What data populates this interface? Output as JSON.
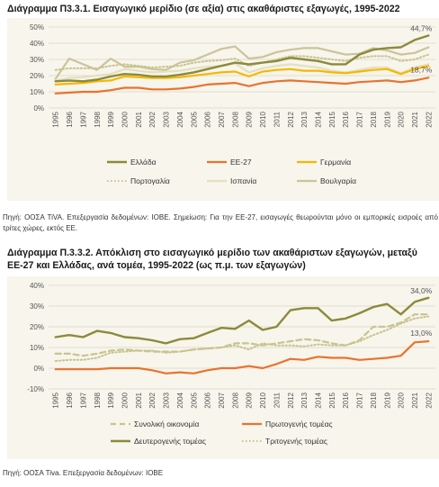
{
  "chart_data": [
    {
      "type": "line",
      "title": "Διάγραμμα Π3.3.1. Εισαγωγικό μερίδιο (σε αξία) στις ακαθάριστες εξαγωγές, 1995-2022",
      "x": [
        "1995",
        "1996",
        "1997",
        "1998",
        "1999",
        "2000",
        "2001",
        "2002",
        "2003",
        "2004",
        "2005",
        "2006",
        "2007",
        "2008",
        "2009",
        "2010",
        "2011",
        "2012",
        "2013",
        "2014",
        "2015",
        "2016",
        "2017",
        "2018",
        "2019",
        "2020",
        "2021",
        "2022"
      ],
      "yticks": [
        "0%",
        "10%",
        "20%",
        "30%",
        "40%",
        "50%"
      ],
      "ylim": [
        0,
        50
      ],
      "grid": true,
      "legend_position": "bottom",
      "series": [
        {
          "name": "Ελλάδα",
          "color": "#8c8a3a",
          "style": "solid",
          "width": 2.4,
          "values": [
            16.5,
            17,
            16.5,
            17.5,
            19.5,
            21,
            20.5,
            19.5,
            19.5,
            20.5,
            22,
            24,
            26,
            28,
            27,
            28,
            29,
            31,
            30,
            29,
            27,
            27,
            33,
            36,
            37,
            37.5,
            42,
            44.7
          ]
        },
        {
          "name": "ΕΕ-27",
          "color": "#e8732e",
          "style": "solid",
          "width": 2.2,
          "values": [
            9,
            9.5,
            10,
            10,
            11,
            12.5,
            12.5,
            11.5,
            11.5,
            12,
            13,
            14.5,
            15,
            15.5,
            13.5,
            15.5,
            16.5,
            17,
            16.5,
            16,
            15.5,
            15,
            16,
            16.5,
            17,
            16,
            17,
            18.7
          ]
        },
        {
          "name": "Γερμανία",
          "color": "#f5b800",
          "style": "solid",
          "width": 2.2,
          "values": [
            14.5,
            15,
            15.5,
            16.5,
            17,
            19.5,
            19,
            18.5,
            18.5,
            19,
            20,
            21,
            22,
            22.5,
            19.5,
            22.5,
            23.5,
            24,
            23,
            23,
            22,
            21.5,
            22.5,
            23.5,
            24,
            21,
            24,
            26
          ]
        },
        {
          "name": "Πορτογαλία",
          "color": "#c8c490",
          "style": "dotted",
          "width": 2,
          "values": [
            23.5,
            24.5,
            24.5,
            24.5,
            26,
            27,
            26,
            25,
            25.5,
            26,
            28,
            29,
            29.5,
            30.5,
            26,
            28,
            30,
            32,
            32,
            31,
            30,
            29,
            31,
            32,
            32,
            29,
            30,
            33
          ]
        },
        {
          "name": "Ισπανία",
          "color": "#e5e0be",
          "style": "solid",
          "width": 2.2,
          "values": [
            17,
            18.5,
            19,
            20,
            21,
            24,
            23,
            22,
            22.5,
            23,
            24.5,
            25.5,
            26,
            27.5,
            22,
            24.5,
            26,
            27,
            26,
            25,
            23,
            22,
            23.5,
            25,
            25,
            21.5,
            25,
            27
          ]
        },
        {
          "name": "Βουλγαρία",
          "color": "#cbc49a",
          "style": "solid",
          "width": 2.2,
          "values": [
            18,
            30.5,
            27,
            23.5,
            30.5,
            25.5,
            25.5,
            24,
            23.5,
            28,
            29.5,
            33,
            36.5,
            38,
            30.5,
            31.5,
            34.5,
            36,
            37,
            37,
            35,
            33,
            33.5,
            37,
            35.5,
            33,
            34,
            37.5
          ]
        }
      ],
      "annotations": [
        {
          "text": "44,7%",
          "series": "Ελλάδα"
        },
        {
          "text": "18,7%",
          "series": "ΕΕ-27"
        }
      ]
    },
    {
      "type": "line",
      "title": "Διάγραμμα Π.3.3.2. Απόκλιση στο εισαγωγικό μερίδιο των ακαθάριστων εξαγωγών, μεταξύ ΕΕ-27 και Ελλάδας, ανά τομέα, 1995-2022 (ως π.μ. των εξαγωγών)",
      "x": [
        "1995",
        "1996",
        "1997",
        "1998",
        "1999",
        "2000",
        "2001",
        "2002",
        "2003",
        "2004",
        "2005",
        "2006",
        "2007",
        "2008",
        "2009",
        "2010",
        "2011",
        "2012",
        "2013",
        "2014",
        "2015",
        "2016",
        "2017",
        "2018",
        "2019",
        "2020",
        "2021",
        "2022"
      ],
      "yticks": [
        "-10%",
        "0%",
        "10%",
        "20%",
        "30%",
        "40%"
      ],
      "ylim": [
        -10,
        40
      ],
      "grid": true,
      "legend_position": "bottom",
      "series": [
        {
          "name": "Συνολική οικονομία",
          "color": "#c8c490",
          "style": "dashed",
          "width": 2.2,
          "values": [
            7,
            7,
            6,
            7,
            8.5,
            9,
            8.5,
            8,
            8,
            8,
            9,
            9.5,
            10,
            12,
            12,
            11,
            12,
            13,
            14,
            13.5,
            12,
            11,
            13.5,
            20,
            20,
            22,
            26,
            26
          ]
        },
        {
          "name": "Πρωτογενής τομέας",
          "color": "#e8732e",
          "style": "solid",
          "width": 2.2,
          "values": [
            -0.5,
            -0.5,
            -0.5,
            -0.5,
            0,
            0,
            0,
            -1,
            -2.5,
            -2,
            -2.5,
            -1,
            0,
            0,
            1,
            0,
            2,
            4.5,
            4,
            5.5,
            5,
            5,
            4,
            4.5,
            5,
            6,
            12.5,
            13
          ]
        },
        {
          "name": "Δευτερογενής τομέας",
          "color": "#8c8a3a",
          "style": "solid",
          "width": 2.4,
          "values": [
            15,
            16,
            15,
            18,
            17,
            15,
            14.5,
            13.5,
            12,
            14,
            14.5,
            17,
            19.5,
            19,
            23,
            18.5,
            20,
            28,
            29,
            29,
            23,
            24,
            26.5,
            29.5,
            31,
            26,
            32,
            34
          ]
        },
        {
          "name": "Τριτογενής τομέας",
          "color": "#c8c490",
          "style": "dotted",
          "width": 2,
          "values": [
            3.5,
            4,
            4,
            5,
            7.5,
            8,
            8.5,
            8.5,
            7.5,
            8,
            9,
            9.5,
            10,
            11,
            9,
            12,
            11,
            11,
            10.5,
            11.5,
            11,
            11,
            13,
            16,
            18.5,
            21.5,
            24,
            25
          ]
        }
      ],
      "annotations": [
        {
          "text": "34,0%",
          "series": "Δευτερογενής τομέας"
        },
        {
          "text": "13,0%",
          "series": "Πρωτογενής τομέας"
        }
      ]
    }
  ],
  "source1": "Πηγή: ΟΟΣΑ TiVA.   Επεξεργασία δεδομένων: ΙΟΒΕ. Σημείωση: Για την ΕΕ-27, εισαγωγές θεωρούνται μόνο οι εμπορικές εισροές από τρίτες χώρες, εκτός ΕΕ.",
  "source2": "Πηγή: ΟΟΣΑ Tiva. Επεξεργασία δεδομένων: ΙΟΒΕ"
}
